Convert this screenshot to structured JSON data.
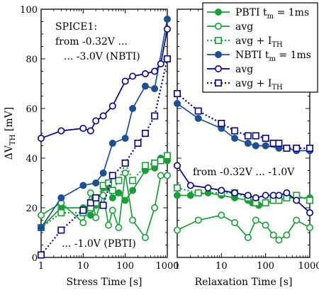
{
  "chart_data": [
    {
      "panel": "stress",
      "type": "line",
      "xscale": "log",
      "xlabel": "Stress Time [s]",
      "ylabel_main": "ΔV",
      "ylabel_sub": "TH",
      "ylabel_unit": " [mV]",
      "xlim": [
        1,
        1000
      ],
      "ylim": [
        0,
        100
      ],
      "xticks": [
        1,
        10,
        100,
        1000
      ],
      "xtick_labels": [
        "1",
        "10",
        "100",
        "1000"
      ],
      "yticks": [
        0,
        20,
        40,
        60,
        80,
        100
      ],
      "ytick_labels": [
        "0",
        "20",
        "40",
        "60",
        "80",
        "100"
      ],
      "annotations": [
        "SPICE1:",
        "from -0.32V ...",
        "... -3.0V (NBTI)",
        "... -1.0V (PBTI)"
      ],
      "series": [
        {
          "key": "pbti_tm",
          "x": [
            1,
            3,
            10,
            15,
            20,
            30,
            40,
            50,
            70,
            100,
            150,
            300,
            500,
            700,
            1000
          ],
          "y": [
            12,
            20,
            20,
            17,
            21,
            28,
            28,
            24,
            26,
            23,
            27,
            35,
            36,
            40,
            39
          ]
        },
        {
          "key": "pbti_avg",
          "x": [
            1,
            3,
            10,
            15,
            20,
            30,
            40,
            50,
            70,
            100,
            150,
            300,
            500,
            700,
            1000
          ],
          "y": [
            17,
            22,
            14,
            26,
            16,
            25,
            13,
            19,
            12,
            34,
            15,
            8,
            20,
            33,
            33
          ]
        },
        {
          "key": "pbti_ith",
          "x": [
            1,
            3,
            10,
            15,
            20,
            30,
            40,
            50,
            70,
            100,
            150,
            300,
            500,
            700,
            1000
          ],
          "y": [
            12,
            18,
            18,
            20,
            22,
            29,
            30,
            27,
            31,
            38,
            31,
            37,
            38,
            39,
            41
          ]
        },
        {
          "key": "nbti_tm",
          "x": [
            1,
            3,
            10,
            20,
            30,
            50,
            100,
            150,
            300,
            500,
            1000
          ],
          "y": [
            12,
            24,
            29,
            30,
            34,
            46,
            48,
            60,
            69,
            68,
            96
          ]
        },
        {
          "key": "nbti_avg",
          "x": [
            1,
            3,
            10,
            15,
            20,
            30,
            50,
            100,
            150,
            300,
            500,
            700,
            1000
          ],
          "y": [
            48,
            51,
            52,
            51,
            55,
            57,
            61,
            71,
            73,
            74,
            75,
            78,
            92
          ]
        },
        {
          "key": "nbti_ith",
          "x": [
            1,
            3,
            10,
            15,
            20,
            30,
            50,
            100,
            200,
            300,
            500,
            1000
          ],
          "y": [
            1,
            11,
            19,
            22,
            24,
            21,
            33,
            38,
            46,
            50,
            57,
            80
          ]
        }
      ]
    },
    {
      "panel": "relaxation",
      "type": "line",
      "xscale": "log",
      "xlabel": "Relaxation Time [s]",
      "xlim": [
        1,
        1000
      ],
      "ylim": [
        0,
        100
      ],
      "xticks": [
        1,
        10,
        100,
        1000
      ],
      "xtick_labels": [
        "1",
        "10",
        "100",
        "1000"
      ],
      "annotations": [
        "from -0.32V ... -1.0V"
      ],
      "series": [
        {
          "key": "pbti_tm",
          "x": [
            1,
            2,
            5,
            10,
            20,
            40,
            50,
            70,
            100,
            200,
            300,
            500,
            1000
          ],
          "y": [
            25,
            25,
            26,
            25,
            24,
            23,
            22,
            21,
            22,
            23,
            24,
            24,
            24
          ]
        },
        {
          "key": "pbti_avg",
          "x": [
            1,
            3,
            10,
            20,
            40,
            60,
            100,
            150,
            200,
            300,
            500,
            1000
          ],
          "y": [
            11,
            15,
            17,
            14,
            8,
            15,
            13,
            9,
            7,
            9,
            15,
            12
          ]
        },
        {
          "key": "pbti_ith",
          "x": [
            1,
            3,
            10,
            20,
            40,
            60,
            100,
            150,
            200,
            300,
            500,
            1000
          ],
          "y": [
            28,
            26,
            26,
            26,
            24,
            22,
            22,
            23,
            23,
            24,
            25,
            23
          ]
        },
        {
          "key": "nbti_tm",
          "x": [
            1,
            3,
            10,
            20,
            40,
            60,
            100,
            200,
            300,
            500,
            1000
          ],
          "y": [
            62,
            56,
            52,
            48,
            46,
            45,
            45,
            44,
            44,
            43,
            43
          ]
        },
        {
          "key": "nbti_avg",
          "x": [
            1,
            2,
            5,
            10,
            20,
            40,
            60,
            100,
            150,
            200,
            300,
            500,
            1000
          ],
          "y": [
            37,
            29,
            28,
            27,
            26,
            25,
            24,
            25,
            25,
            25,
            26,
            23,
            18
          ]
        },
        {
          "key": "nbti_ith",
          "x": [
            1,
            3,
            10,
            20,
            40,
            60,
            100,
            150,
            200,
            300,
            500,
            1000
          ],
          "y": [
            66,
            59,
            54,
            51,
            49,
            49,
            48,
            46,
            46,
            44,
            44,
            44
          ]
        }
      ]
    }
  ],
  "legend": {
    "position": "top-right",
    "entries": [
      {
        "key": "pbti_tm",
        "label": "PBTI t",
        "sub": "m",
        "suffix": " = 1ms",
        "color": "#1a9e3a",
        "marker": "circle-filled",
        "dash": "solid"
      },
      {
        "key": "pbti_avg",
        "label": "avg",
        "sub": "",
        "suffix": "",
        "color": "#1a9e3a",
        "marker": "circle-open",
        "dash": "solid"
      },
      {
        "key": "pbti_ith",
        "label": "avg + I",
        "sub": "TH",
        "suffix": "",
        "color": "#1a9e3a",
        "marker": "square-open",
        "dash": "dotted"
      },
      {
        "key": "nbti_tm",
        "label": "NBTI t",
        "sub": "m",
        "suffix": " = 1ms",
        "color": "#1f4f93",
        "marker": "circle-filled",
        "dash": "solid"
      },
      {
        "key": "nbti_avg",
        "label": "avg",
        "sub": "",
        "suffix": "",
        "color": "#00008b",
        "marker": "circle-open",
        "dash": "solid"
      },
      {
        "key": "nbti_ith",
        "label": "avg + I",
        "sub": "TH",
        "suffix": "",
        "color": "#00008b",
        "marker": "square-open",
        "dash": "dotted"
      }
    ]
  }
}
